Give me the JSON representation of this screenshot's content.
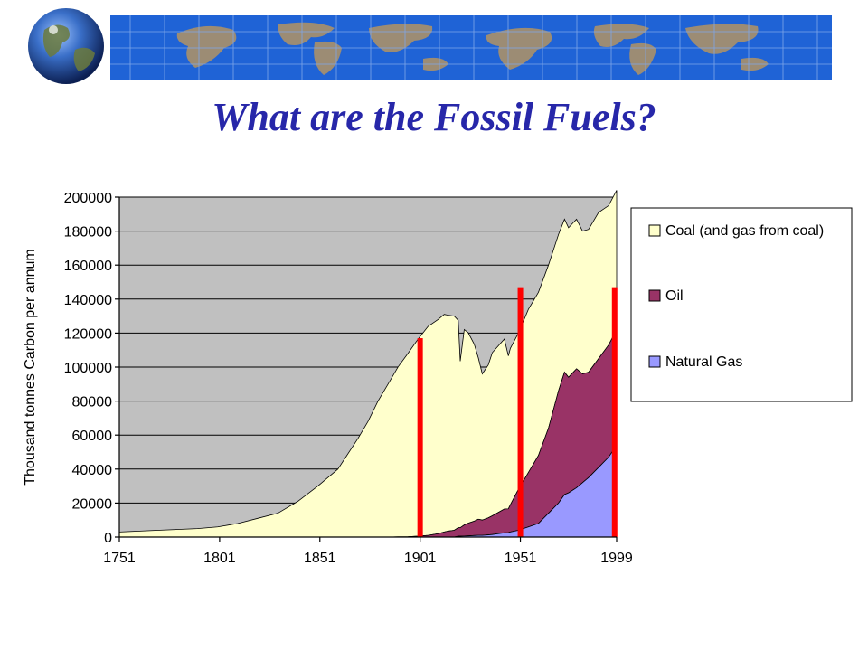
{
  "slide": {
    "title": "What are the Fossil Fuels?"
  },
  "colors": {
    "title": "#2727a9",
    "banner_ocean": "#1f63d6",
    "banner_land": "#9c8c74",
    "plot_background": "#c0c0c0",
    "coal": "#ffffcc",
    "oil": "#993366",
    "natural_gas": "#9999ff",
    "marker": "#ff0000"
  },
  "icons": {
    "logo": "globe-icon",
    "banner": "world-map-banner"
  },
  "chart_data": {
    "type": "area",
    "stacked": true,
    "title": "",
    "xlabel": "",
    "ylabel": "Thousand tonnes Carbon per annum",
    "xlim": [
      1751,
      1999
    ],
    "ylim": [
      0,
      200000
    ],
    "x_ticks": [
      "1751",
      "1801",
      "1851",
      "1901",
      "1951",
      "1999"
    ],
    "y_ticks": [
      "0",
      "20000",
      "40000",
      "60000",
      "80000",
      "100000",
      "120000",
      "140000",
      "160000",
      "180000",
      "200000"
    ],
    "grid": true,
    "legend_position": "right",
    "x": [
      1751,
      1770,
      1790,
      1800,
      1810,
      1820,
      1830,
      1840,
      1850,
      1860,
      1870,
      1875,
      1880,
      1885,
      1890,
      1895,
      1900,
      1905,
      1910,
      1913,
      1915,
      1918,
      1920,
      1921,
      1923,
      1925,
      1928,
      1930,
      1932,
      1935,
      1937,
      1940,
      1943,
      1945,
      1946,
      1950,
      1955,
      1960,
      1965,
      1970,
      1973,
      1975,
      1979,
      1982,
      1985,
      1990,
      1995,
      1999
    ],
    "series": [
      {
        "name": "Coal (and gas from coal)",
        "values": [
          3000,
          4000,
          5000,
          6000,
          8000,
          11000,
          14000,
          21000,
          30000,
          40000,
          58000,
          68000,
          80000,
          90000,
          100000,
          108000,
          116000,
          123000,
          126000,
          128000,
          127000,
          126000,
          122000,
          98000,
          115000,
          112000,
          104000,
          95000,
          86000,
          90000,
          96000,
          98000,
          100000,
          90000,
          92000,
          92000,
          96000,
          96000,
          96000,
          92000,
          90000,
          88000,
          88000,
          84000,
          84000,
          86000,
          82000,
          82000
        ]
      },
      {
        "name": "Oil",
        "values": [
          0,
          0,
          0,
          0,
          0,
          0,
          0,
          0,
          0,
          0,
          0,
          0,
          0,
          0,
          100,
          200,
          500,
          1000,
          2000,
          3000,
          3500,
          4000,
          5000,
          5000,
          6500,
          7500,
          8500,
          9500,
          9000,
          10000,
          11000,
          12500,
          14000,
          14000,
          16000,
          24000,
          32000,
          40000,
          50000,
          66000,
          72000,
          68000,
          70000,
          64000,
          62000,
          64000,
          66000,
          68000
        ]
      },
      {
        "name": "Natural Gas",
        "values": [
          0,
          0,
          0,
          0,
          0,
          0,
          0,
          0,
          0,
          0,
          0,
          0,
          0,
          0,
          0,
          0,
          0,
          0,
          0,
          0,
          0,
          0,
          500,
          500,
          600,
          700,
          900,
          1000,
          1000,
          1300,
          1500,
          2000,
          2500,
          2600,
          3000,
          4000,
          6000,
          8000,
          14000,
          20000,
          25000,
          26000,
          29000,
          32000,
          35000,
          41000,
          47000,
          54000
        ]
      }
    ],
    "vertical_markers": [
      {
        "x": 1901,
        "y_top": 117000
      },
      {
        "x": 1951,
        "y_top": 147000
      },
      {
        "x": 1998,
        "y_top": 147000
      }
    ]
  }
}
